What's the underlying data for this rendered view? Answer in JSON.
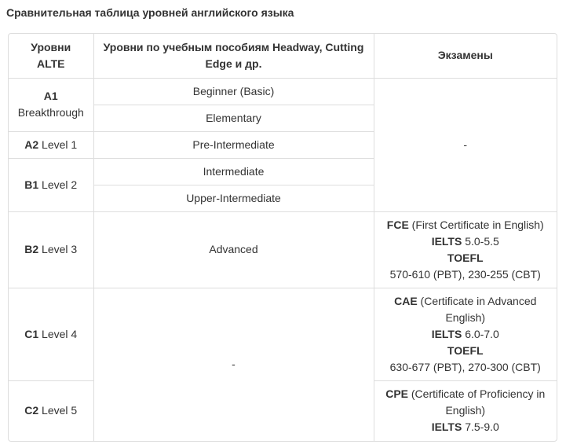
{
  "title": "Сравнительная таблица уровней английского языка",
  "headers": {
    "col1": "Уровни ALTE",
    "col2": "Уровни по учебным пособиям Headway, Cutting Edge и др.",
    "col3": "Экзамены"
  },
  "levels": {
    "a1": {
      "code": "A1",
      "name": "Breakthrough"
    },
    "a2": {
      "code": "A2",
      "name": " Level 1"
    },
    "b1": {
      "code": "B1",
      "name": " Level 2"
    },
    "b2": {
      "code": "B2",
      "name": " Level 3"
    },
    "c1": {
      "code": "C1",
      "name": " Level 4"
    },
    "c2": {
      "code": "C2",
      "name": " Level 5"
    }
  },
  "books": {
    "beginner": "Beginner (Basic)",
    "elementary": "Elementary",
    "pre_intermediate": "Pre-Intermediate",
    "intermediate": "Intermediate",
    "upper_intermediate": "Upper-Intermediate",
    "advanced": "Advanced",
    "none": "-"
  },
  "exams": {
    "none": "-",
    "b2": {
      "fce": "FCE",
      "fce_desc": " (First Certificate in English)",
      "ielts": "IELTS",
      "ielts_score": " 5.0-5.5",
      "toefl": "TOEFL",
      "toefl_score": "570-610 (PBT), 230-255 (CBT)"
    },
    "c1": {
      "cae": "CAE",
      "cae_desc": " (Certificate in Advanced English)",
      "ielts": "IELTS",
      "ielts_score": " 6.0-7.0",
      "toefl": "TOEFL",
      "toefl_score": "630-677 (PBT), 270-300 (CBT)"
    },
    "c2": {
      "cpe": "CPE",
      "cpe_desc": " (Certificate of Proficiency in English)",
      "ielts": "IELTS",
      "ielts_score": " 7.5-9.0"
    }
  }
}
